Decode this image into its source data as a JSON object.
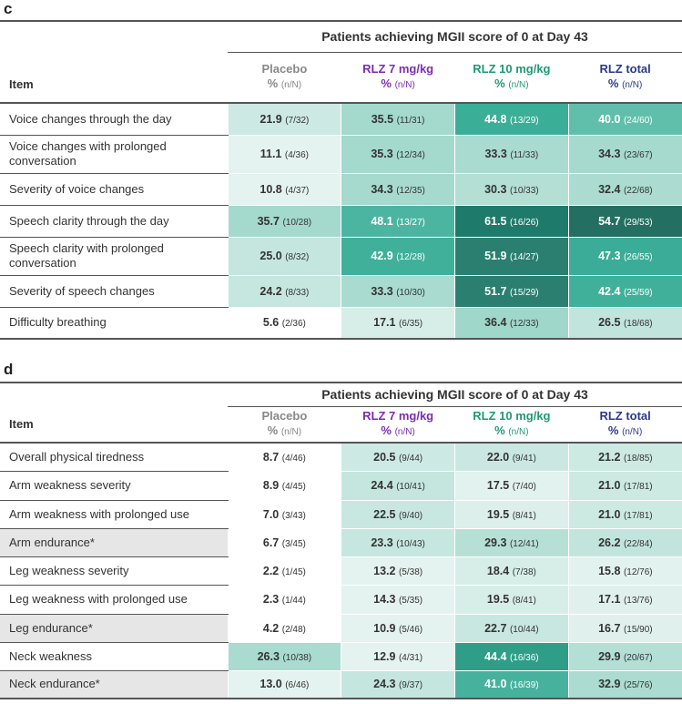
{
  "chart_data": [
    {
      "type": "table",
      "panel": "c",
      "title": "Patients achieving MGII score of 0 at Day 43",
      "item_header": "Item",
      "columns": [
        {
          "name": "Placebo",
          "unit": "%",
          "sub": "(n/N)",
          "color": "#888888"
        },
        {
          "name": "RLZ 7 mg/kg",
          "unit": "%",
          "sub": "(n/N)",
          "color": "#7b2cb0"
        },
        {
          "name": "RLZ 10 mg/kg",
          "unit": "%",
          "sub": "(n/N)",
          "color": "#1e9a72"
        },
        {
          "name": "RLZ total",
          "unit": "%",
          "sub": "(n/N)",
          "color": "#2a3a8c"
        }
      ],
      "rows": [
        {
          "item": "Voice changes through the day",
          "shaded": false,
          "cells": [
            {
              "value": "21.9",
              "nn": "(7/32)",
              "color": "#cde9e3",
              "dark": false
            },
            {
              "value": "35.5",
              "nn": "(11/31)",
              "color": "#a4d9ce",
              "dark": false
            },
            {
              "value": "44.8",
              "nn": "(13/29)",
              "color": "#3bae98",
              "dark": true
            },
            {
              "value": "40.0",
              "nn": "(24/60)",
              "color": "#5fbfaa",
              "dark": true
            }
          ]
        },
        {
          "item": "Voice changes with prolonged conversation",
          "shaded": false,
          "cells": [
            {
              "value": "11.1",
              "nn": "(4/36)",
              "color": "#e4f3ef",
              "dark": false
            },
            {
              "value": "35.3",
              "nn": "(12/34)",
              "color": "#a4d9ce",
              "dark": false
            },
            {
              "value": "33.3",
              "nn": "(11/33)",
              "color": "#a9dbd0",
              "dark": false
            },
            {
              "value": "34.3",
              "nn": "(23/67)",
              "color": "#a6dacf",
              "dark": false
            }
          ]
        },
        {
          "item": "Severity of voice changes",
          "shaded": false,
          "cells": [
            {
              "value": "10.8",
              "nn": "(4/37)",
              "color": "#e4f3ef",
              "dark": false
            },
            {
              "value": "34.3",
              "nn": "(12/35)",
              "color": "#a6dacf",
              "dark": false
            },
            {
              "value": "30.3",
              "nn": "(10/33)",
              "color": "#b3dfd5",
              "dark": false
            },
            {
              "value": "32.4",
              "nn": "(22/68)",
              "color": "#acdcd1",
              "dark": false
            }
          ]
        },
        {
          "item": "Speech clarity through the day",
          "shaded": false,
          "cells": [
            {
              "value": "35.7",
              "nn": "(10/28)",
              "color": "#a4d9ce",
              "dark": false
            },
            {
              "value": "48.1",
              "nn": "(13/27)",
              "color": "#4cb5a1",
              "dark": true
            },
            {
              "value": "61.5",
              "nn": "(16/26)",
              "color": "#1e7a6a",
              "dark": true
            },
            {
              "value": "54.7",
              "nn": "(29/53)",
              "color": "#236f61",
              "dark": true
            }
          ]
        },
        {
          "item": "Speech clarity with prolonged conversation",
          "shaded": false,
          "cells": [
            {
              "value": "25.0",
              "nn": "(8/32)",
              "color": "#c4e6de",
              "dark": false
            },
            {
              "value": "42.9",
              "nn": "(12/28)",
              "color": "#40b09b",
              "dark": true
            },
            {
              "value": "51.9",
              "nn": "(14/27)",
              "color": "#2a7f70",
              "dark": true
            },
            {
              "value": "47.3",
              "nn": "(26/55)",
              "color": "#3aac97",
              "dark": true
            }
          ]
        },
        {
          "item": "Severity of speech changes",
          "shaded": false,
          "cells": [
            {
              "value": "24.2",
              "nn": "(8/33)",
              "color": "#c6e7df",
              "dark": false
            },
            {
              "value": "33.3",
              "nn": "(10/30)",
              "color": "#a9dbd0",
              "dark": false
            },
            {
              "value": "51.7",
              "nn": "(15/29)",
              "color": "#2a7f70",
              "dark": true
            },
            {
              "value": "42.4",
              "nn": "(25/59)",
              "color": "#40b09b",
              "dark": true
            }
          ]
        },
        {
          "item": "Difficulty breathing",
          "shaded": false,
          "cells": [
            {
              "value": "5.6",
              "nn": "(2/36)",
              "color": "#ffffff",
              "dark": false
            },
            {
              "value": "17.1",
              "nn": "(6/35)",
              "color": "#d7eee8",
              "dark": false
            },
            {
              "value": "36.4",
              "nn": "(12/33)",
              "color": "#a0d7cb",
              "dark": false
            },
            {
              "value": "26.5",
              "nn": "(18/68)",
              "color": "#c1e5dd",
              "dark": false
            }
          ]
        }
      ]
    },
    {
      "type": "table",
      "panel": "d",
      "title": "Patients achieving MGII score of 0 at Day 43",
      "item_header": "Item",
      "columns": [
        {
          "name": "Placebo",
          "unit": "%",
          "sub": "(n/N)",
          "color": "#888888"
        },
        {
          "name": "RLZ 7 mg/kg",
          "unit": "%",
          "sub": "(n/N)",
          "color": "#7b2cb0"
        },
        {
          "name": "RLZ 10 mg/kg",
          "unit": "%",
          "sub": "(n/N)",
          "color": "#1e9a72"
        },
        {
          "name": "RLZ total",
          "unit": "%",
          "sub": "(n/N)",
          "color": "#2a3a8c"
        }
      ],
      "rows": [
        {
          "item": "Overall physical tiredness",
          "shaded": false,
          "cells": [
            {
              "value": "8.7",
              "nn": "(4/46)",
              "color": "#ffffff",
              "dark": false
            },
            {
              "value": "20.5",
              "nn": "(9/44)",
              "color": "#cde9e3",
              "dark": false
            },
            {
              "value": "22.0",
              "nn": "(9/41)",
              "color": "#cae8e1",
              "dark": false
            },
            {
              "value": "21.2",
              "nn": "(18/85)",
              "color": "#cce9e2",
              "dark": false
            }
          ]
        },
        {
          "item": "Arm weakness severity",
          "shaded": false,
          "cells": [
            {
              "value": "8.9",
              "nn": "(4/45)",
              "color": "#ffffff",
              "dark": false
            },
            {
              "value": "24.4",
              "nn": "(10/41)",
              "color": "#c4e6de",
              "dark": false
            },
            {
              "value": "17.5",
              "nn": "(7/40)",
              "color": "#e2f2ee",
              "dark": false
            },
            {
              "value": "21.0",
              "nn": "(17/81)",
              "color": "#cce9e2",
              "dark": false
            }
          ]
        },
        {
          "item": "Arm weakness with prolonged use",
          "shaded": false,
          "cells": [
            {
              "value": "7.0",
              "nn": "(3/43)",
              "color": "#ffffff",
              "dark": false
            },
            {
              "value": "22.5",
              "nn": "(9/40)",
              "color": "#c8e7e0",
              "dark": false
            },
            {
              "value": "19.5",
              "nn": "(8/41)",
              "color": "#dcefea",
              "dark": false
            },
            {
              "value": "21.0",
              "nn": "(17/81)",
              "color": "#cce9e2",
              "dark": false
            }
          ]
        },
        {
          "item": "Arm endurance*",
          "shaded": true,
          "cells": [
            {
              "value": "6.7",
              "nn": "(3/45)",
              "color": "#ffffff",
              "dark": false
            },
            {
              "value": "23.3",
              "nn": "(10/43)",
              "color": "#c6e7df",
              "dark": false
            },
            {
              "value": "29.3",
              "nn": "(12/41)",
              "color": "#b6e0d6",
              "dark": false
            },
            {
              "value": "26.2",
              "nn": "(22/84)",
              "color": "#c1e5dd",
              "dark": false
            }
          ]
        },
        {
          "item": "Leg weakness severity",
          "shaded": false,
          "cells": [
            {
              "value": "2.2",
              "nn": "(1/45)",
              "color": "#ffffff",
              "dark": false
            },
            {
              "value": "13.2",
              "nn": "(5/38)",
              "color": "#e4f3ef",
              "dark": false
            },
            {
              "value": "18.4",
              "nn": "(7/38)",
              "color": "#d7eee8",
              "dark": false
            },
            {
              "value": "15.8",
              "nn": "(12/76)",
              "color": "#e2f2ee",
              "dark": false
            }
          ]
        },
        {
          "item": "Leg weakness with prolonged use",
          "shaded": false,
          "cells": [
            {
              "value": "2.3",
              "nn": "(1/44)",
              "color": "#ffffff",
              "dark": false
            },
            {
              "value": "14.3",
              "nn": "(5/35)",
              "color": "#e4f3ef",
              "dark": false
            },
            {
              "value": "19.5",
              "nn": "(8/41)",
              "color": "#d7eee8",
              "dark": false
            },
            {
              "value": "17.1",
              "nn": "(13/76)",
              "color": "#e0f1ed",
              "dark": false
            }
          ]
        },
        {
          "item": "Leg endurance*",
          "shaded": true,
          "cells": [
            {
              "value": "4.2",
              "nn": "(2/48)",
              "color": "#ffffff",
              "dark": false
            },
            {
              "value": "10.9",
              "nn": "(5/46)",
              "color": "#e4f3ef",
              "dark": false
            },
            {
              "value": "22.7",
              "nn": "(10/44)",
              "color": "#c8e7e0",
              "dark": false
            },
            {
              "value": "16.7",
              "nn": "(15/90)",
              "color": "#e0f1ed",
              "dark": false
            }
          ]
        },
        {
          "item": "Neck weakness",
          "shaded": false,
          "cells": [
            {
              "value": "26.3",
              "nn": "(10/38)",
              "color": "#a9dbd0",
              "dark": false
            },
            {
              "value": "12.9",
              "nn": "(4/31)",
              "color": "#e4f3ef",
              "dark": false
            },
            {
              "value": "44.4",
              "nn": "(16/36)",
              "color": "#2e9e88",
              "dark": true
            },
            {
              "value": "29.9",
              "nn": "(20/67)",
              "color": "#b3dfd5",
              "dark": false
            }
          ]
        },
        {
          "item": "Neck endurance*",
          "shaded": true,
          "cells": [
            {
              "value": "13.0",
              "nn": "(6/46)",
              "color": "#e4f3ef",
              "dark": false
            },
            {
              "value": "24.3",
              "nn": "(9/37)",
              "color": "#c4e6de",
              "dark": false
            },
            {
              "value": "41.0",
              "nn": "(16/39)",
              "color": "#46b29e",
              "dark": true
            },
            {
              "value": "32.9",
              "nn": "(25/76)",
              "color": "#acdcd1",
              "dark": false
            }
          ]
        }
      ]
    }
  ]
}
